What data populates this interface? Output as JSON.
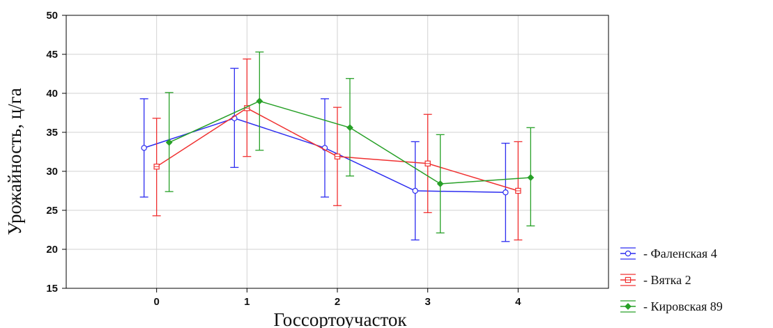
{
  "chart_data": {
    "type": "line",
    "title": "",
    "xlabel": "Госсортоучасток",
    "ylabel": "Урожайность, ц/га",
    "x_categories": [
      "0",
      "1",
      "2",
      "3",
      "4"
    ],
    "xlim": [
      -1,
      5
    ],
    "ylim": [
      15,
      50
    ],
    "y_ticks": [
      15,
      20,
      25,
      30,
      35,
      40,
      45,
      50
    ],
    "grid": true,
    "legend_position": "right",
    "series": [
      {
        "name": "- Фаленская 4",
        "color": "#2c2cf0",
        "marker": "circle",
        "x": [
          0,
          1,
          2,
          3,
          4
        ],
        "y": [
          33,
          36.8,
          33,
          27.5,
          27.3
        ],
        "ci_low": [
          26.7,
          30.5,
          26.7,
          21.2,
          21
        ],
        "ci_high": [
          39.3,
          43.2,
          39.3,
          33.8,
          33.6
        ]
      },
      {
        "name": "- Вятка 2",
        "color": "#f03030",
        "marker": "square",
        "x": [
          0,
          1,
          2,
          3,
          4
        ],
        "y": [
          30.6,
          38.1,
          31.9,
          31,
          27.5
        ],
        "ci_low": [
          24.3,
          31.9,
          25.6,
          24.7,
          21.2
        ],
        "ci_high": [
          36.8,
          44.4,
          38.2,
          37.3,
          33.8
        ]
      },
      {
        "name": "- Кировская 89",
        "color": "#27a027",
        "marker": "diamond",
        "x": [
          0,
          1,
          2,
          3,
          4
        ],
        "y": [
          33.7,
          39,
          35.6,
          28.4,
          29.2
        ],
        "ci_low": [
          27.4,
          32.7,
          29.4,
          22.1,
          23
        ],
        "ci_high": [
          40.1,
          45.3,
          41.9,
          34.7,
          35.6
        ]
      }
    ]
  }
}
